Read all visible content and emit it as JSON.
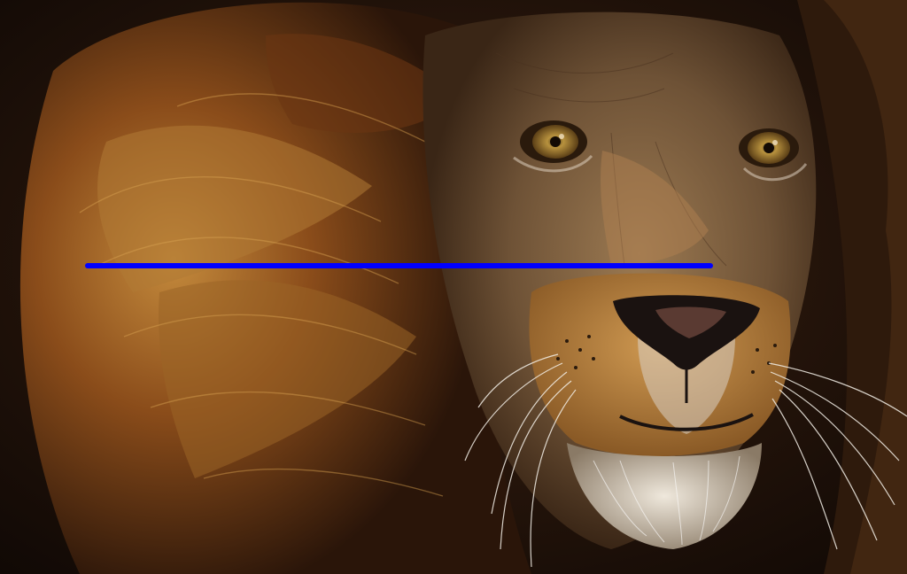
{
  "scene": {
    "subject": "lion",
    "colors": {
      "background": "#1a0e07",
      "mane_dark": "#2a1509",
      "mane_mid": "#7a4418",
      "mane_light": "#c08a3a",
      "face": "#8a6a45",
      "muzzle": "#b07838",
      "chin": "#d8d0c4",
      "eye_iris": "#a07a2e",
      "nose": "#1a1210",
      "whisker": "#f2eee6",
      "overlay_line": "#0000ff"
    }
  }
}
